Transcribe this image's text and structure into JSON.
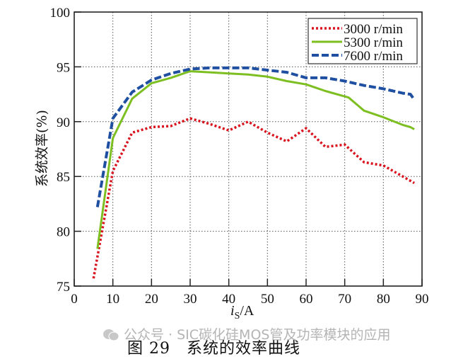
{
  "chart_data": {
    "type": "line",
    "title": "",
    "xlabel": "i_s/A",
    "ylabel": "系统效率(%)",
    "xlim": [
      0,
      90
    ],
    "ylim": [
      75,
      100
    ],
    "xticks": [
      0,
      10,
      20,
      30,
      40,
      50,
      60,
      70,
      80,
      90
    ],
    "yticks": [
      75,
      80,
      85,
      90,
      95,
      100
    ],
    "grid": true,
    "legend_position": "upper right",
    "series": [
      {
        "name": "3000 r/min",
        "color": "#d9141e",
        "style": "dotted",
        "x": [
          5,
          10,
          15,
          20,
          25,
          30,
          35,
          40,
          45,
          50,
          55,
          60,
          65,
          70,
          75,
          80,
          85,
          88
        ],
        "y": [
          75.7,
          85.5,
          89.0,
          89.5,
          89.6,
          90.3,
          89.8,
          89.2,
          90.0,
          89.0,
          88.2,
          89.4,
          87.7,
          87.9,
          86.3,
          86.0,
          85.0,
          84.4
        ]
      },
      {
        "name": "5300 r/min",
        "color": "#7dbf21",
        "style": "solid",
        "x": [
          6,
          10,
          15,
          20,
          25,
          30,
          35,
          40,
          45,
          50,
          55,
          60,
          65,
          70,
          71,
          75,
          80,
          85,
          87,
          88
        ],
        "y": [
          78.4,
          88.5,
          92.1,
          93.5,
          94.0,
          94.6,
          94.5,
          94.4,
          94.3,
          94.1,
          93.7,
          93.4,
          92.8,
          92.3,
          92.2,
          91.0,
          90.4,
          89.7,
          89.5,
          89.3
        ]
      },
      {
        "name": "7600 r/min",
        "color": "#1f4fa0",
        "style": "dashdot",
        "x": [
          6,
          10,
          15,
          20,
          25,
          30,
          35,
          40,
          45,
          50,
          55,
          60,
          65,
          70,
          75,
          80,
          85,
          87,
          88
        ],
        "y": [
          82.2,
          90.3,
          92.7,
          93.8,
          94.4,
          94.8,
          94.9,
          94.9,
          94.9,
          94.7,
          94.5,
          94.0,
          94.0,
          93.7,
          93.3,
          93.0,
          92.6,
          92.5,
          92.0
        ]
      }
    ]
  },
  "labels": {
    "xlabel_var": "i",
    "xlabel_sub": "S",
    "xlabel_unit": "/A",
    "ylabel": "系统效率(%)",
    "caption": "图 29　系统的效率曲线",
    "watermark": "公众号 · SIC碳化硅MOS管及功率模块的应用"
  }
}
